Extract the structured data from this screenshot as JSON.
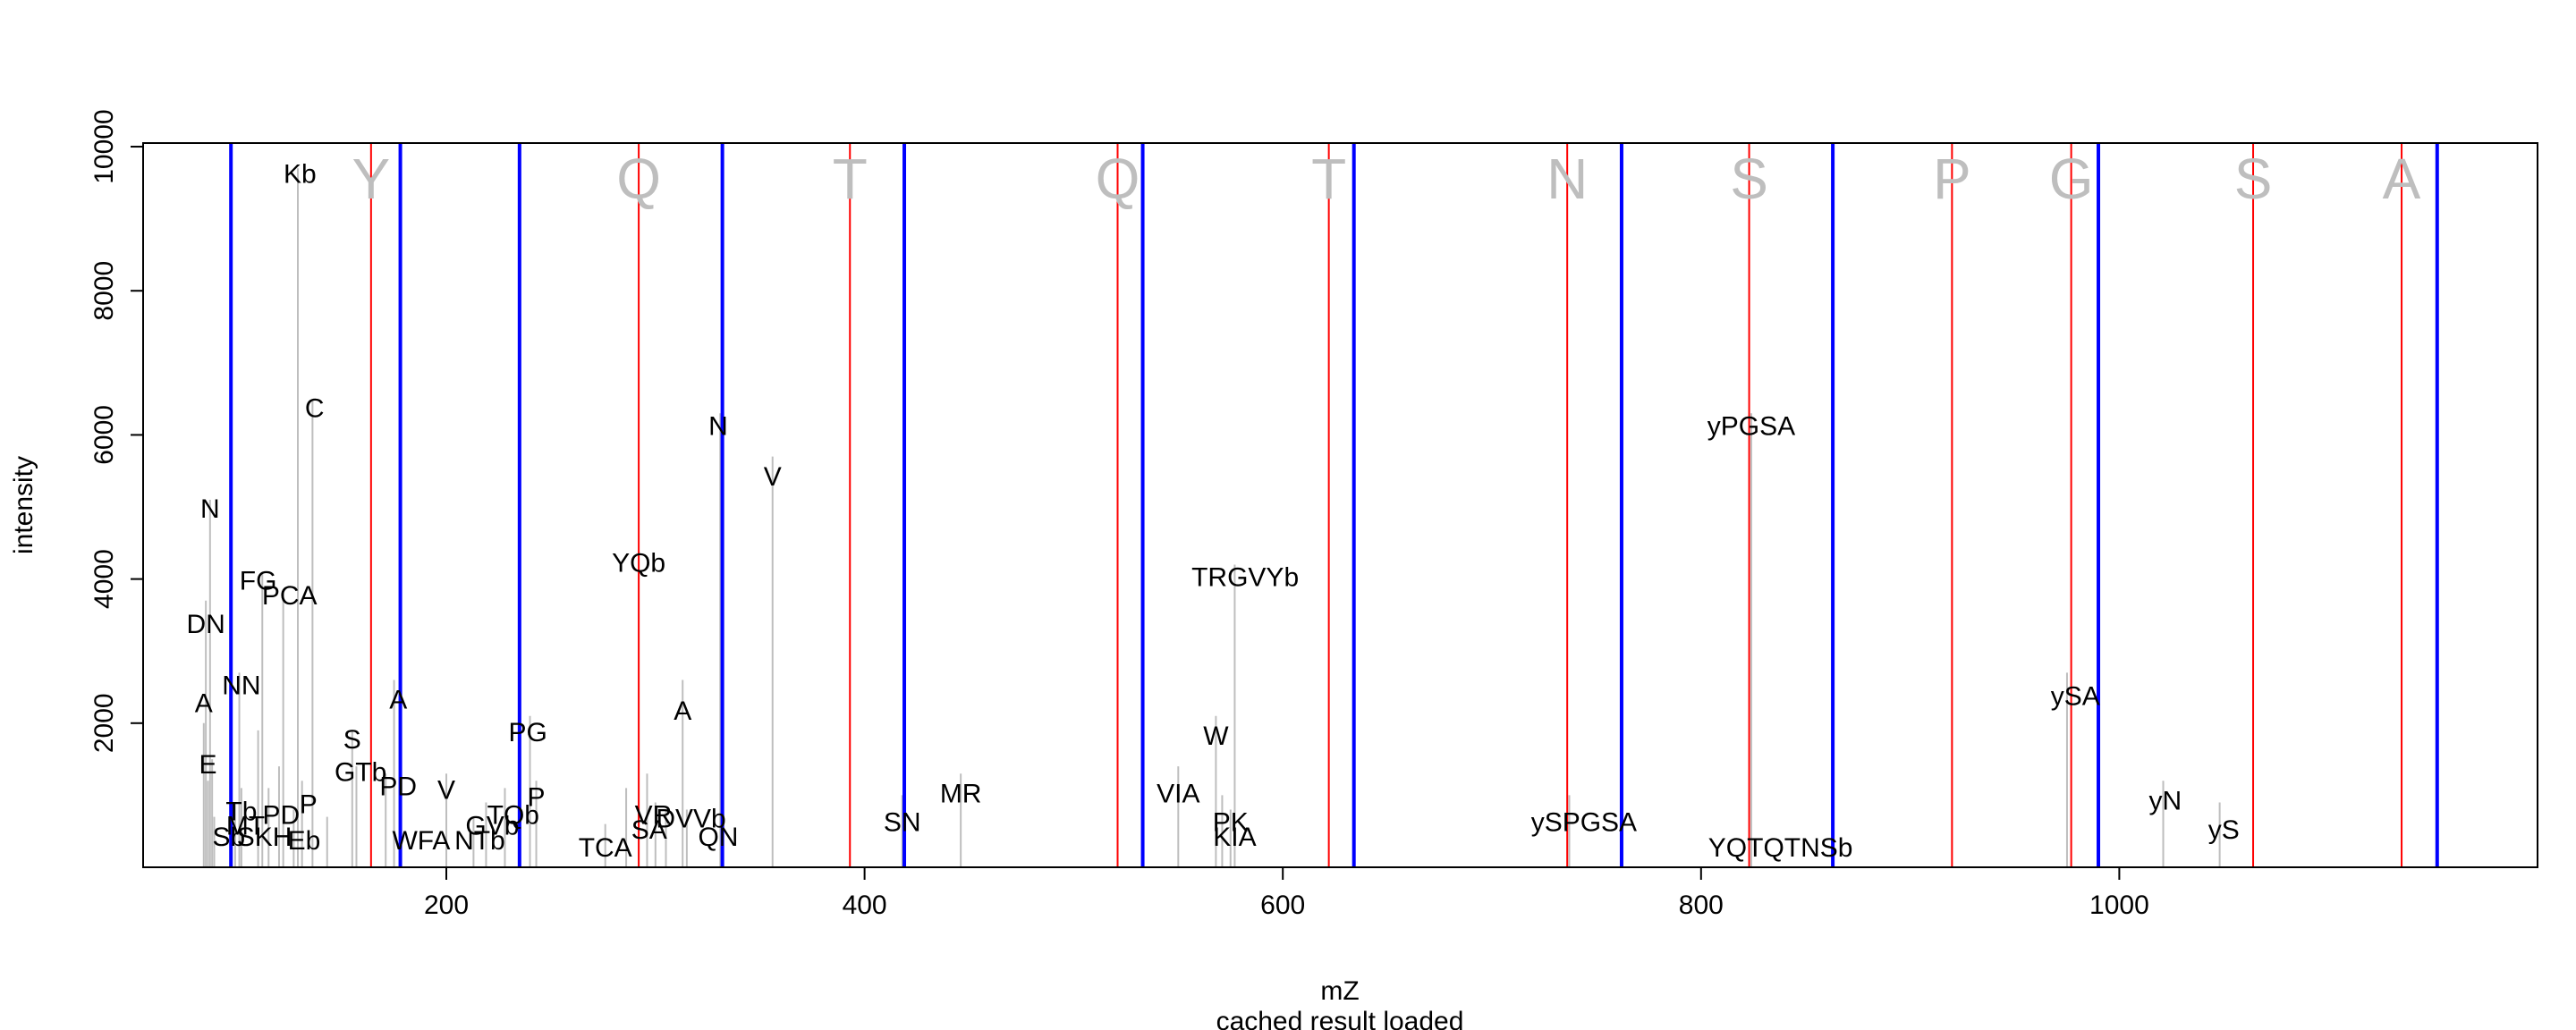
{
  "chart_data": {
    "type": "line",
    "xlabel": "mZ",
    "ylabel": "intensity",
    "subtitle": "cached result loaded",
    "xlim": [
      55,
      1200
    ],
    "ylim": [
      0,
      10050
    ],
    "x_ticks": [
      200,
      400,
      600,
      800,
      1000
    ],
    "y_ticks": [
      2000,
      4000,
      6000,
      8000,
      10000
    ],
    "grid": false,
    "colors": {
      "peak": "#bebebe",
      "red_line": "#ff0000",
      "blue_line": "#0000ff",
      "sequence_letter": "#bebebe",
      "label": "#000000"
    },
    "peaks": [
      {
        "x": 84,
        "y": 2000
      },
      {
        "x": 85,
        "y": 3700
      },
      {
        "x": 86,
        "y": 1200
      },
      {
        "x": 87,
        "y": 5100
      },
      {
        "x": 88,
        "y": 1500
      },
      {
        "x": 89,
        "y": 700
      },
      {
        "x": 99,
        "y": 900
      },
      {
        "x": 101,
        "y": 2700
      },
      {
        "x": 102,
        "y": 1100
      },
      {
        "x": 110,
        "y": 1900
      },
      {
        "x": 112,
        "y": 4100
      },
      {
        "x": 115,
        "y": 1100
      },
      {
        "x": 120,
        "y": 1400
      },
      {
        "x": 122,
        "y": 3800
      },
      {
        "x": 127,
        "y": 800
      },
      {
        "x": 129,
        "y": 9700
      },
      {
        "x": 131,
        "y": 1200
      },
      {
        "x": 136,
        "y": 6500
      },
      {
        "x": 143,
        "y": 700
      },
      {
        "x": 155,
        "y": 1900
      },
      {
        "x": 157,
        "y": 1400
      },
      {
        "x": 171,
        "y": 1300
      },
      {
        "x": 175,
        "y": 2600
      },
      {
        "x": 178,
        "y": 700
      },
      {
        "x": 200,
        "y": 1300
      },
      {
        "x": 213,
        "y": 700
      },
      {
        "x": 219,
        "y": 900
      },
      {
        "x": 228,
        "y": 1100
      },
      {
        "x": 240,
        "y": 2100
      },
      {
        "x": 243,
        "y": 1200
      },
      {
        "x": 276,
        "y": 600
      },
      {
        "x": 286,
        "y": 1100
      },
      {
        "x": 292,
        "y": 4400
      },
      {
        "x": 296,
        "y": 1300
      },
      {
        "x": 300,
        "y": 900
      },
      {
        "x": 305,
        "y": 800
      },
      {
        "x": 313,
        "y": 2600
      },
      {
        "x": 315,
        "y": 800
      },
      {
        "x": 331,
        "y": 6300
      },
      {
        "x": 356,
        "y": 5700
      },
      {
        "x": 418,
        "y": 1000
      },
      {
        "x": 446,
        "y": 1300
      },
      {
        "x": 550,
        "y": 1400
      },
      {
        "x": 568,
        "y": 2100
      },
      {
        "x": 571,
        "y": 1000
      },
      {
        "x": 575,
        "y": 800
      },
      {
        "x": 577,
        "y": 4200
      },
      {
        "x": 737,
        "y": 1000
      },
      {
        "x": 824,
        "y": 6300
      },
      {
        "x": 975,
        "y": 2700
      },
      {
        "x": 1021,
        "y": 1200
      },
      {
        "x": 1048,
        "y": 900
      }
    ],
    "peak_labels": [
      {
        "x": 130,
        "y": 9500,
        "text": "Kb"
      },
      {
        "x": 137,
        "y": 6250,
        "text": "C"
      },
      {
        "x": 87,
        "y": 4850,
        "text": "N"
      },
      {
        "x": 330,
        "y": 6000,
        "text": "N"
      },
      {
        "x": 356,
        "y": 5300,
        "text": "V"
      },
      {
        "x": 292,
        "y": 4100,
        "text": "YQb"
      },
      {
        "x": 824,
        "y": 6000,
        "text": "yPGSA"
      },
      {
        "x": 110,
        "y": 3850,
        "text": "FG"
      },
      {
        "x": 125,
        "y": 3650,
        "text": "PCA"
      },
      {
        "x": 582,
        "y": 3900,
        "text": "TRGVYb"
      },
      {
        "x": 85,
        "y": 3250,
        "text": "DN"
      },
      {
        "x": 102,
        "y": 2400,
        "text": "NN"
      },
      {
        "x": 84,
        "y": 2150,
        "text": "A"
      },
      {
        "x": 177,
        "y": 2200,
        "text": "A"
      },
      {
        "x": 313,
        "y": 2050,
        "text": "A"
      },
      {
        "x": 979,
        "y": 2250,
        "text": "ySA"
      },
      {
        "x": 239,
        "y": 1750,
        "text": "PG"
      },
      {
        "x": 568,
        "y": 1700,
        "text": "W"
      },
      {
        "x": 155,
        "y": 1650,
        "text": "S"
      },
      {
        "x": 159,
        "y": 1200,
        "text": "GTb"
      },
      {
        "x": 86,
        "y": 1300,
        "text": "E"
      },
      {
        "x": 177,
        "y": 1000,
        "text": "PD"
      },
      {
        "x": 200,
        "y": 950,
        "text": "V"
      },
      {
        "x": 243,
        "y": 850,
        "text": "P"
      },
      {
        "x": 446,
        "y": 900,
        "text": "MR"
      },
      {
        "x": 550,
        "y": 900,
        "text": "VIA"
      },
      {
        "x": 1022,
        "y": 800,
        "text": "yN"
      },
      {
        "x": 134,
        "y": 750,
        "text": "P"
      },
      {
        "x": 102,
        "y": 650,
        "text": "Tb"
      },
      {
        "x": 121,
        "y": 600,
        "text": "PD"
      },
      {
        "x": 232,
        "y": 600,
        "text": "TQb"
      },
      {
        "x": 299,
        "y": 600,
        "text": "VR"
      },
      {
        "x": 317,
        "y": 550,
        "text": "DVVb"
      },
      {
        "x": 104,
        "y": 450,
        "text": "MT"
      },
      {
        "x": 222,
        "y": 450,
        "text": "GVb"
      },
      {
        "x": 297,
        "y": 400,
        "text": "SA"
      },
      {
        "x": 418,
        "y": 500,
        "text": "SN"
      },
      {
        "x": 575,
        "y": 500,
        "text": "PK"
      },
      {
        "x": 744,
        "y": 500,
        "text": "ySPGSA"
      },
      {
        "x": 1050,
        "y": 400,
        "text": "yS"
      },
      {
        "x": 96,
        "y": 300,
        "text": "Sb"
      },
      {
        "x": 113,
        "y": 300,
        "text": "SKH"
      },
      {
        "x": 132,
        "y": 250,
        "text": "Eb"
      },
      {
        "x": 188,
        "y": 250,
        "text": "WFA"
      },
      {
        "x": 216,
        "y": 250,
        "text": "NTb"
      },
      {
        "x": 330,
        "y": 300,
        "text": "QN"
      },
      {
        "x": 577,
        "y": 300,
        "text": "KIA"
      },
      {
        "x": 276,
        "y": 150,
        "text": "TCA"
      },
      {
        "x": 838,
        "y": 150,
        "text": "YQTQTNSb"
      }
    ],
    "sequence_letters": [
      {
        "x": 164,
        "text": "Y"
      },
      {
        "x": 292,
        "text": "Q"
      },
      {
        "x": 393,
        "text": "T"
      },
      {
        "x": 521,
        "text": "Q"
      },
      {
        "x": 622,
        "text": "T"
      },
      {
        "x": 736,
        "text": "N"
      },
      {
        "x": 823,
        "text": "S"
      },
      {
        "x": 920,
        "text": "P"
      },
      {
        "x": 977,
        "text": "G"
      },
      {
        "x": 1064,
        "text": "S"
      },
      {
        "x": 1135,
        "text": "A"
      }
    ],
    "red_lines": [
      164,
      292,
      393,
      521,
      622,
      736,
      823,
      920,
      977,
      1064,
      1135
    ],
    "blue_lines": [
      97,
      178,
      235,
      332,
      419,
      533,
      634,
      762,
      863,
      990,
      1152
    ]
  }
}
